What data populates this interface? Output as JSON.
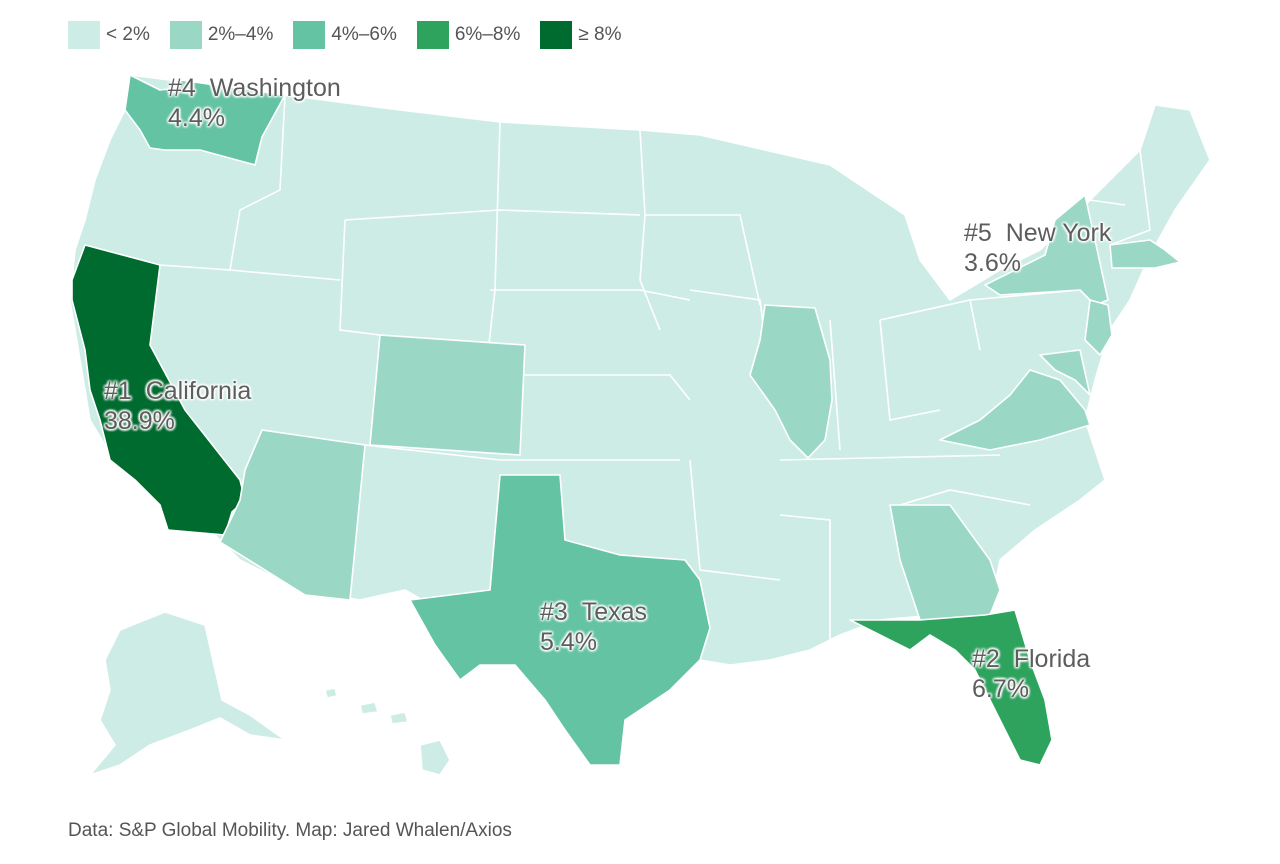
{
  "legend": [
    {
      "label": "< 2%",
      "color": "#cdece5"
    },
    {
      "label": "2%–4%",
      "color": "#9ad8c5"
    },
    {
      "label": "4%–6%",
      "color": "#63c3a3"
    },
    {
      "label": "6%–8%",
      "color": "#2ea35e"
    },
    {
      "label": "≥ 8%",
      "color": "#006b2f"
    }
  ],
  "states": [
    {
      "state": "California",
      "rank": "#1",
      "share": "38.9%",
      "bin": "≥ 8%"
    },
    {
      "state": "Florida",
      "rank": "#2",
      "share": "6.7%",
      "bin": "6%–8%"
    },
    {
      "state": "Texas",
      "rank": "#3",
      "share": "5.4%",
      "bin": "4%–6%"
    },
    {
      "state": "Washington",
      "rank": "#4",
      "share": "4.4%",
      "bin": "4%–6%"
    },
    {
      "state": "New York",
      "rank": "#5",
      "share": "3.6%",
      "bin": "2%–4%"
    },
    {
      "state": "Illinois",
      "bin": "2%–4%"
    },
    {
      "state": "Colorado",
      "bin": "2%–4%"
    },
    {
      "state": "Arizona",
      "bin": "2%–4%"
    },
    {
      "state": "Georgia",
      "bin": "2%–4%"
    },
    {
      "state": "Virginia",
      "bin": "2%–4%"
    },
    {
      "state": "New Jersey",
      "bin": "2%–4%"
    },
    {
      "state": "Massachusetts",
      "bin": "2%–4%"
    },
    {
      "state": "Maryland",
      "bin": "2%–4%"
    }
  ],
  "labels": {
    "california": {
      "rank": "#1",
      "name": "California",
      "value": "38.9%"
    },
    "florida": {
      "rank": "#2",
      "name": "Florida",
      "value": "6.7%"
    },
    "texas": {
      "rank": "#3",
      "name": "Texas",
      "value": "5.4%"
    },
    "washington": {
      "rank": "#4",
      "name": "Washington",
      "value": "4.4%"
    },
    "new_york": {
      "rank": "#5",
      "name": "New York",
      "value": "3.6%"
    }
  },
  "source": "Data: S&P Global Mobility. Map: Jared Whalen/Axios"
}
